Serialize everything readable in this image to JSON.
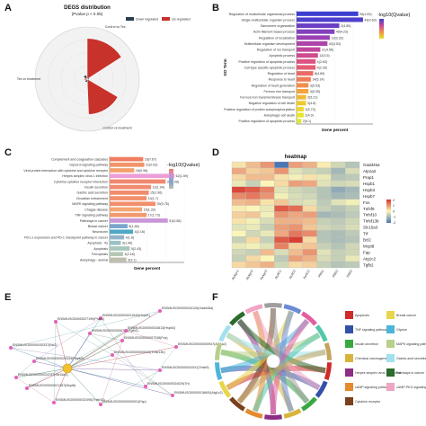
{
  "panels": {
    "a": "A",
    "b": "B",
    "c": "C",
    "d": "D",
    "e": "E",
    "f": "F"
  },
  "chart_data": [
    {
      "panel": "A",
      "type": "pie",
      "title": "DEGS distribution",
      "subtitle": "(Pvalue p < 0.05)",
      "legend": [
        "Down regulated",
        "Up regulated"
      ],
      "colors": {
        "down": "#2d3e50",
        "up": "#c7322b"
      },
      "groups": [
        "Control vs Tes",
        "Control vs treatment",
        "Tes vs treatment"
      ],
      "up_values": [
        78,
        68,
        5
      ],
      "down_values": [
        4,
        6,
        8
      ],
      "rlim": [
        0,
        100
      ]
    },
    {
      "panel": "B",
      "type": "bar",
      "ylabel": "GO Term",
      "xlabel": "Gene percent",
      "legend_title": "-log10(Qvalue)",
      "categories": [
        "Regulation of multicellular organismal process",
        "Single-multicellular organism process",
        "Sarcomere organization",
        "Actin filament-based process",
        "Regulation of localization",
        "Multicellular organism development",
        "Regulation of ion transport",
        "Apoptotic process",
        "Positive regulation of apoptotic process",
        "Cell-type specific apoptotic process",
        "Regulation of heart",
        "Response to heart",
        "Regulation of heart generation",
        "Ferrous iron transport",
        "Ferrous iron transmembrane transport",
        "Negative regulation of cell death",
        "Positive regulation of protein autophosphorylation",
        "Autophagic cell death",
        "Positive regulation of apoptotic process"
      ],
      "values": [
        26,
        28,
        18,
        16,
        14,
        13,
        10,
        9,
        8,
        8,
        7,
        6,
        5,
        5,
        4,
        4,
        3,
        3,
        2
      ],
      "value_labels": [
        "26(1.63)",
        "43(4.63)",
        "2(4.85)",
        "49(4.23)",
        "13(3.33)",
        "43(3.53)",
        "11(4.56)",
        "12(3.5)",
        "4(2.63)",
        "4(2.28)",
        "8(4.89)",
        "14(5.14)",
        "3(5.03)",
        "3(5.35)",
        "3(5.21)",
        "3(4.8)",
        "2(5.73)",
        "2(4.9)",
        "2(5.1)"
      ],
      "colors": [
        "#3d3fd0",
        "#4f3fcc",
        "#6a3ec5",
        "#8340bd",
        "#9a42b3",
        "#ad44a8",
        "#c0479c",
        "#cf4b90",
        "#dc5282",
        "#e65c74",
        "#ec6b66",
        "#f07d58",
        "#f28f4b",
        "#f3a33f",
        "#f2b735",
        "#f0c92f",
        "#ecd82c",
        "#e6e42d",
        "#dde930"
      ]
    },
    {
      "panel": "C",
      "type": "bar",
      "xlabel": "Gene percent",
      "legend_title": "-log10(Qvalue)",
      "categories": [
        "Complement and coagulation cascades",
        "Glycerol signaling pathway",
        "Viral protein interaction with cytokine and cytokine receptor",
        "Herpes simplex virus 1 infection",
        "Cytokine-cytokine receptor interaction",
        "Insulin secretion",
        "Gastric acid secretion",
        "Circadian entrainment",
        "MAPK signaling pathway",
        "Chagas disease",
        "TNF signaling pathway",
        "Pathways in cancer",
        "Breast cancer",
        "Neurotoxin",
        "PD-L1 expression and PD-1 checkpoint pathway in cancer",
        "Apoptosis - fly",
        "Apoptosis",
        "Ferroptosis",
        "Autophagy - animal"
      ],
      "values": [
        30,
        31,
        22,
        58,
        50,
        37,
        35,
        33,
        41,
        29,
        33,
        52,
        16,
        21,
        13,
        10,
        18,
        12,
        15
      ],
      "value_labels": [
        "16(7.67)",
        "21(0.63)",
        "16(0.96)",
        "62(1.59)",
        "34(1.08)",
        "13(1.94)",
        "15(1.96)",
        "13(1.7)",
        "39(0.76)",
        "15(1.39)",
        "17(1.73)",
        "51(0.58)",
        "8(1.66)",
        "4(2.16)",
        "4(1.8)",
        "3(1.46)",
        "5(2.43)",
        "3(2.18)",
        "3(3.1)"
      ],
      "colors": [
        "#f07e60",
        "#f29468",
        "#f3a06d",
        "#ec9fd7",
        "#f08870",
        "#f18a6e",
        "#f18c6d",
        "#f1906b",
        "#f28e6c",
        "#f3a672",
        "#f29970",
        "#c996d8",
        "#7aa6cc",
        "#4fa7c4",
        "#93b3c8",
        "#9ac2c4",
        "#a9c7bd",
        "#b5c8b6",
        "#bfbfb0"
      ]
    },
    {
      "panel": "D",
      "type": "heatmap",
      "title": "heatmap",
      "rows": [
        "Gadd45a",
        "Atp1a2",
        "Prap1",
        "Hspb1",
        "Hspb3",
        "Hspb7",
        "Fos",
        "Tnfsf9",
        "Tnfsf10",
        "Tnfsf13b",
        "Slc15a3",
        "Trf",
        "Bcl2",
        "Mcpt8",
        "Fap",
        "Atg1c2",
        "Tgfb2"
      ],
      "columns": [
        "AsAgn1",
        "AsAgn2",
        "AsAgn3",
        "AsAC1",
        "AsAC2",
        "AsAC3",
        "PBS1",
        "PBS2",
        "PBS3"
      ],
      "values": [
        [
          0.2,
          0.6,
          1.0,
          -2.0,
          0.9,
          0.7,
          0.1,
          -0.5,
          -0.8
        ],
        [
          0.8,
          0.4,
          0.5,
          1.0,
          -0.3,
          -0.5,
          -0.6,
          -1.0,
          -0.4
        ],
        [
          0.3,
          0.6,
          0.6,
          0.2,
          -0.1,
          0.2,
          -0.2,
          -0.8,
          -0.7
        ],
        [
          -0.2,
          -0.6,
          0.0,
          0.3,
          0.9,
          0.8,
          -0.3,
          -0.5,
          -0.4
        ],
        [
          1.8,
          1.6,
          1.2,
          -0.3,
          -0.5,
          -0.6,
          -0.8,
          -1.2,
          -1.0
        ],
        [
          1.1,
          1.3,
          1.0,
          -0.1,
          -0.4,
          -0.5,
          -0.8,
          -1.0,
          -0.9
        ],
        [
          0.6,
          0.7,
          0.2,
          0.5,
          -0.4,
          -0.3,
          -0.7,
          -0.3,
          -0.1
        ],
        [
          0.1,
          0.0,
          -0.2,
          1.6,
          1.4,
          0.3,
          -0.6,
          -0.8,
          -0.6
        ],
        [
          0.4,
          0.5,
          -0.1,
          1.0,
          0.8,
          0.9,
          -1.0,
          -0.9,
          -0.7
        ],
        [
          0.2,
          -0.1,
          -0.4,
          0.7,
          0.7,
          0.6,
          -0.6,
          -0.7,
          -0.5
        ],
        [
          -0.3,
          -0.2,
          -0.6,
          0.9,
          1.0,
          0.5,
          -0.5,
          -0.6,
          -0.4
        ],
        [
          0.0,
          -0.5,
          -0.2,
          0.8,
          1.3,
          1.1,
          -0.8,
          -0.9,
          -0.7
        ],
        [
          -0.6,
          0.3,
          -0.6,
          1.6,
          1.9,
          0.3,
          -0.8,
          -0.9,
          -0.8
        ],
        [
          -0.2,
          -0.1,
          -0.3,
          1.2,
          0.4,
          0.5,
          -0.6,
          -0.8,
          -0.5
        ],
        [
          -0.5,
          -0.6,
          0.6,
          -0.4,
          0.6,
          1.0,
          -0.3,
          -0.6,
          -0.5
        ],
        [
          -0.6,
          0.3,
          0.0,
          -0.7,
          0.9,
          0.7,
          -0.4,
          -0.6,
          -0.2
        ],
        [
          0.3,
          0.5,
          0.7,
          -0.5,
          0.3,
          0.4,
          -0.6,
          -0.8,
          -0.7
        ]
      ],
      "scale": [
        -2,
        -1,
        0,
        1,
        2
      ],
      "colors": {
        "low": "#4a78b4",
        "mid": "#fbf6b8",
        "high": "#d7342b"
      }
    },
    {
      "panel": "E",
      "type": "network",
      "hub": "",
      "nodes": [
        "ENSMUSG00000034126(Gadd45a)",
        "ENSMUSG00000031540(Hspb1)",
        "ENSMUSG00000006740(Tgfb2)",
        "ENSMUSG00000034813(Hspb3)",
        "ENSMUSG00000027199(Prap1)",
        "ENSMUSG00000030337(Bcl2)",
        "ENSMUSG00000020334(Hspb7)",
        "ENSMUSG00000007038(Fos)",
        "ENSMUSG00000005947(Atp1a2)",
        "ENSMUSG00000000000(Tnfsf13b)",
        "ENSMUSG00000042041(Tnfsf9)",
        "ENSMUSG00000024737(Slc15a3)",
        "ENSMUSG00000021367(Mcpt8)",
        "ENSMUSG00000034029(Trf)",
        "ENSMUSG00000018600(Atg1c2)",
        "ENSMUSG00000000001(Fap)",
        "ENSMUSG00000032495(Tnfsf10)"
      ]
    },
    {
      "panel": "F",
      "type": "chord",
      "legend": [
        "Apoptosis",
        "TNF signaling pathway",
        "Insulin secretion",
        "Chemical carcinogenesis",
        "Herpes simplex virus 1 infection",
        "cAMP signaling pathway",
        "Cytokine receptor",
        "Breast cancer",
        "Glycine",
        "MAPK signaling pathway",
        "Gastric acid secretion",
        "Pathways in cancer",
        "cAMP-PKG signaling pathway"
      ],
      "legend_colors": [
        "#d02a29",
        "#3550a8",
        "#39a843",
        "#d7b53b",
        "#8b2e84",
        "#e48a2f",
        "#7a3f1c",
        "#e7d54b",
        "#4db5d9",
        "#b8d08b",
        "#a2e1ef",
        "#2b6b2b",
        "#f0a5c4"
      ],
      "gene_colors": [
        "#d02a29",
        "#3550a8",
        "#39a843",
        "#d7b53b",
        "#8b2e84",
        "#e48a2f",
        "#7a3f1c",
        "#e7d54b",
        "#4db5d9",
        "#b8d08b",
        "#a2e1ef",
        "#2b6b2b",
        "#f0a5c4",
        "#9e9e9e",
        "#6b8bd6",
        "#e35f9f",
        "#53c7a8",
        "#c4a55c"
      ]
    }
  ]
}
